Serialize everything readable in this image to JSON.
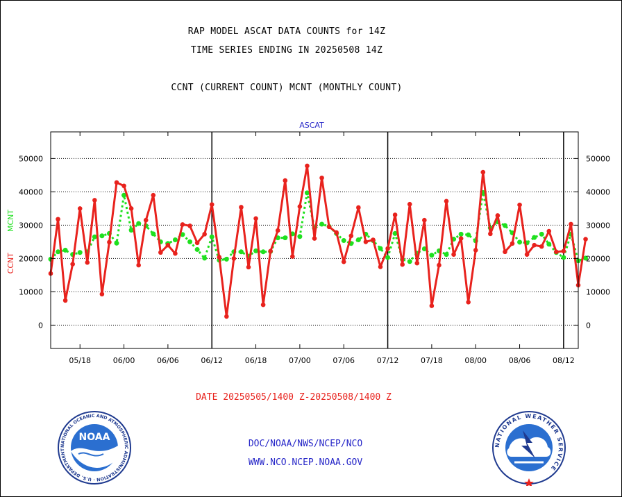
{
  "header": {
    "title_line1": "RAP MODEL ASCAT DATA COUNTS for 14Z",
    "title_line2": "TIME SERIES ENDING IN 20250508 14Z",
    "title_line3": "CCNT (CURRENT COUNT) MCNT (MONTHLY COUNT)"
  },
  "footer": {
    "date_range": "DATE 20250505/1400 Z-20250508/1400 Z",
    "credit_line1": "DOC/NOAA/NWS/NCEP/NCO",
    "credit_line2": "WWW.NCO.NCEP.NOAA.GOV"
  },
  "logos": {
    "left": "NOAA",
    "left_ring_text": "NATIONAL OCEANIC AND ATMOSPHERIC ADMINISTRATION · U.S. DEPARTMENT OF COMMERCE",
    "right_ring_text": "NATIONAL WEATHER SERVICE"
  },
  "colors": {
    "ccnt": "#e8221d",
    "mcnt": "#1ee01e",
    "title_blue": "#2626c8",
    "grid": "#000000"
  },
  "chart_data": {
    "type": "line",
    "title": "ASCAT",
    "ylabel_left": "CCNT",
    "ylabel_right": "MCNT",
    "ylim": [
      -7000,
      58000
    ],
    "yticks": [
      0,
      10000,
      20000,
      30000,
      40000,
      50000
    ],
    "ytick_labels": [
      "0",
      "10000",
      "20000",
      "30000",
      "40000",
      "50000"
    ],
    "xlim": [
      0,
      72
    ],
    "xticks": [
      4,
      10,
      16,
      22,
      28,
      34,
      40,
      46,
      52,
      58,
      64,
      70
    ],
    "xtick_labels": [
      "05/18",
      "06/00",
      "06/06",
      "06/12",
      "06/18",
      "07/00",
      "07/06",
      "07/12",
      "07/18",
      "08/00",
      "08/06",
      "08/12"
    ],
    "day_boundaries": [
      22,
      46,
      70
    ],
    "grid": true,
    "series": [
      {
        "name": "CCNT",
        "style": "solid",
        "values": [
          15500,
          31800,
          7400,
          18300,
          35000,
          18800,
          37500,
          9300,
          24900,
          42800,
          41800,
          35000,
          18000,
          31500,
          39000,
          21800,
          24000,
          21500,
          30200,
          29800,
          24700,
          27300,
          36200,
          20400,
          2600,
          20000,
          35400,
          17400,
          32000,
          6100,
          22200,
          28400,
          43400,
          20600,
          35600,
          47800,
          26000,
          44200,
          29500,
          27800,
          19000,
          26800,
          35300,
          25000,
          25600,
          17500,
          23000,
          33100,
          18200,
          36300,
          18600,
          31500,
          5800,
          18000,
          37200,
          21200,
          26000,
          6900,
          22500,
          45900,
          27400,
          32900,
          22000,
          24500,
          36100,
          21200,
          24000,
          23600,
          28200,
          22000,
          22200,
          30300,
          12000,
          25800
        ]
      },
      {
        "name": "MCNT",
        "style": "dashed",
        "values": [
          19800,
          22000,
          22500,
          21200,
          21800,
          22000,
          26500,
          26800,
          27500,
          24600,
          39000,
          28500,
          30500,
          29800,
          27400,
          25000,
          24500,
          25600,
          27200,
          25000,
          22700,
          20100,
          26500,
          19500,
          19800,
          22000,
          22000,
          20700,
          22300,
          22000,
          22100,
          26200,
          26200,
          27400,
          26600,
          39700,
          29100,
          30300,
          29600,
          27500,
          25400,
          24500,
          25600,
          27300,
          25400,
          23000,
          20300,
          27500,
          19700,
          19100,
          21600,
          22900,
          21000,
          22300,
          21200,
          25800,
          27300,
          27100,
          25300,
          39800,
          29200,
          31000,
          29900,
          27700,
          24900,
          24700,
          26300,
          27300,
          24300,
          21800,
          20300,
          27300,
          19300,
          20100
        ]
      }
    ]
  }
}
